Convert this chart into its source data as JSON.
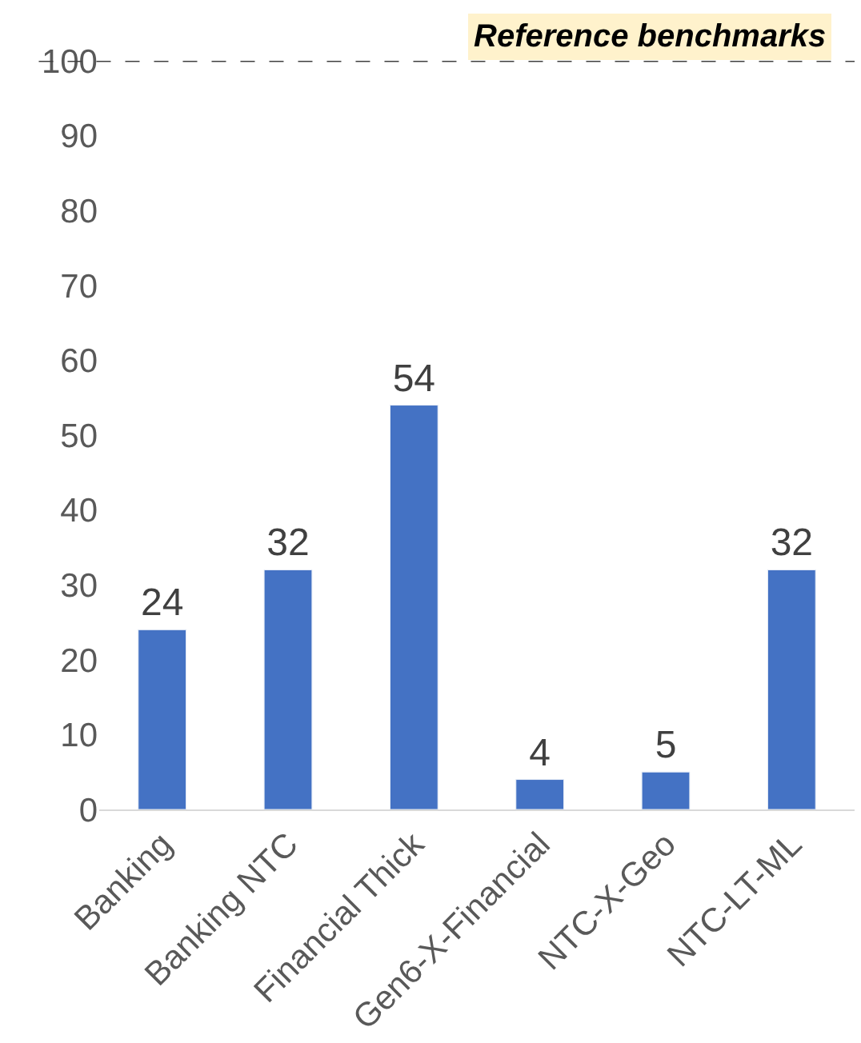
{
  "chart_data": {
    "type": "bar",
    "categories": [
      "Banking",
      "Banking NTC",
      "Financial Thick",
      "Gen6-X-Financial",
      "NTC-X-Geo",
      "NTC-LT-ML"
    ],
    "values": [
      24,
      32,
      54,
      4,
      5,
      32
    ],
    "color": "#4472c4",
    "ylim": [
      0,
      100
    ],
    "yticks": [
      0,
      10,
      20,
      30,
      40,
      50,
      60,
      70,
      80,
      90,
      100
    ],
    "data_labels": true,
    "ref_lines": [
      {
        "axis": "y",
        "value": 100,
        "label": "Reference benchmarks",
        "color": "#404040",
        "line_style": "dashed"
      }
    ]
  }
}
